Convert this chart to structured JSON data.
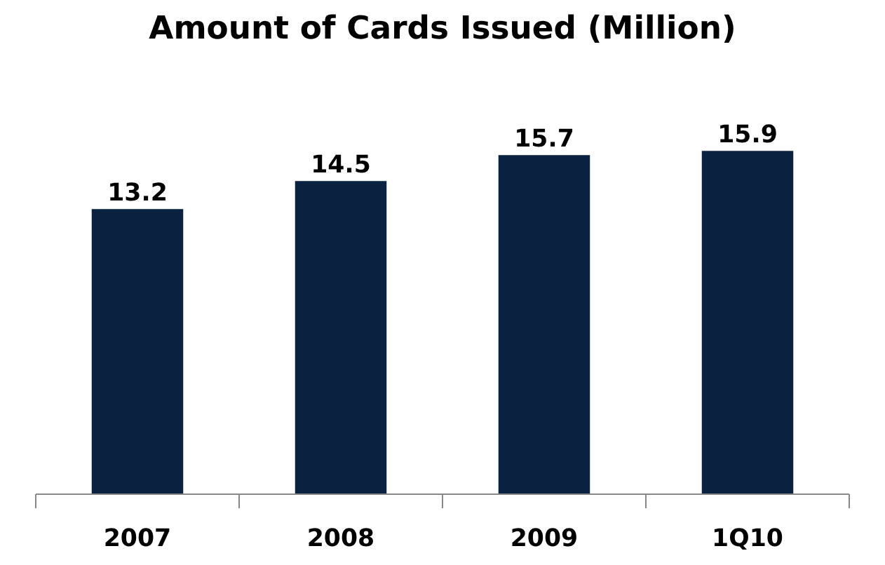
{
  "chart_data": {
    "type": "bar",
    "title": "Amount of Cards Issued (Million)",
    "categories": [
      "2007",
      "2008",
      "2009",
      "1Q10"
    ],
    "values": [
      13.2,
      14.5,
      15.7,
      15.9
    ],
    "color": "#0b2140",
    "data_labels": true,
    "grid": false
  }
}
